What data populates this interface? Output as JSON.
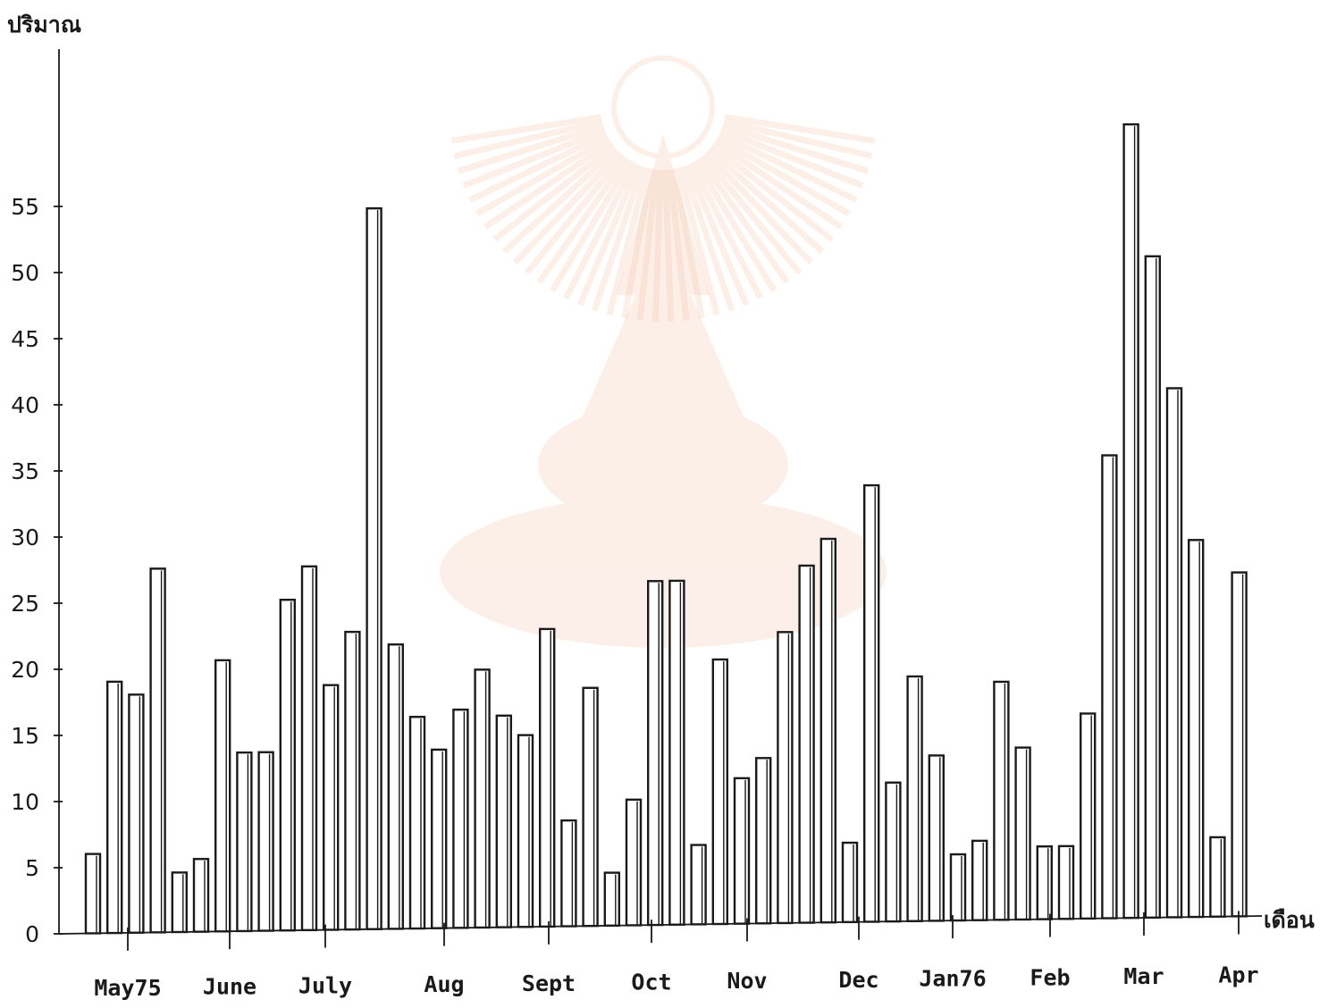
{
  "colors": {
    "ink": "#1a1a1a",
    "watermark": "#f2b89a",
    "background": "#ffffff"
  },
  "watermark_icon": "university-crest-icon",
  "chart_data": {
    "type": "bar",
    "title": "",
    "ylabel": "ปริมาณ",
    "xlabel": "เดือน",
    "ylim": [
      0,
      62
    ],
    "yticks": [
      0,
      5,
      10,
      15,
      20,
      25,
      30,
      35,
      40,
      45,
      50,
      55
    ],
    "grid": false,
    "legend": "none",
    "months": [
      "May75",
      "June",
      "July",
      "Aug",
      "Sept",
      "Oct",
      "Nov",
      "Dec",
      "Jan76",
      "Feb",
      "Mar",
      "Apr"
    ],
    "values": [
      6,
      19,
      18,
      27.5,
      4.5,
      5.5,
      20.5,
      13.5,
      13.5,
      25,
      27.5,
      18.5,
      22.5,
      54.5,
      21.5,
      16,
      13.5,
      16.5,
      19.5,
      16,
      14.5,
      22.5,
      8,
      18,
      4,
      9.5,
      26,
      26,
      6,
      20,
      11,
      12.5,
      22,
      27,
      29,
      6,
      33,
      10.5,
      18.5,
      12.5,
      5,
      6,
      18,
      13,
      5.5,
      5.5,
      15.5,
      35,
      60,
      50,
      40,
      28.5,
      6,
      26
    ]
  }
}
